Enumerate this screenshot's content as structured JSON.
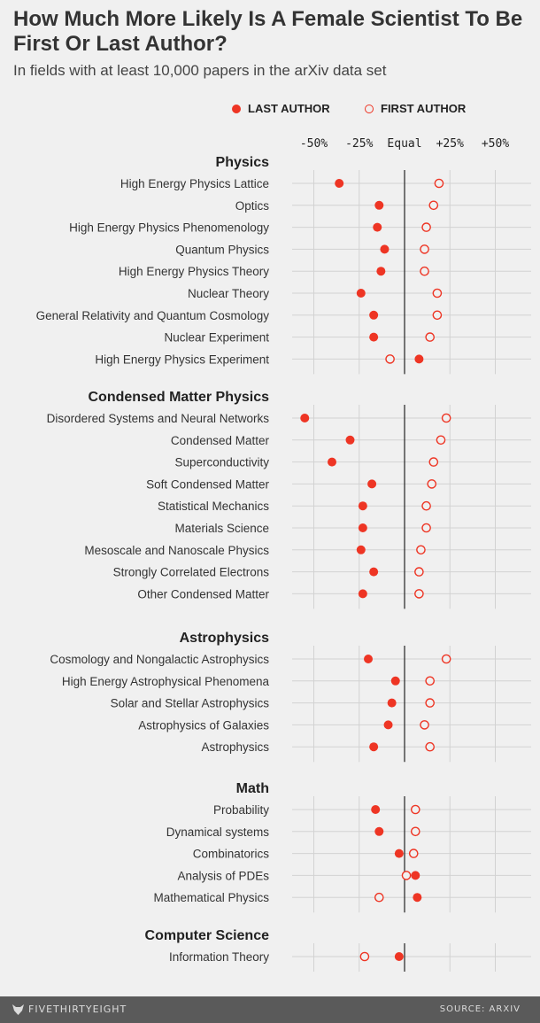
{
  "title": "How Much More Likely Is A Female Scientist To Be First Or Last Author?",
  "subtitle": "In fields with at least 10,000 papers in the arXiv data set",
  "legend": {
    "last_author": "LAST AUTHOR",
    "first_author": "FIRST AUTHOR"
  },
  "footer": {
    "brand": "FIVETHIRTYEIGHT",
    "source": "SOURCE: ARXIV"
  },
  "colors": {
    "accent": "#ee3524",
    "background": "#f0f0f0",
    "footer": "#5a5a5a"
  },
  "chart_data": {
    "type": "scatter",
    "xlim": [
      -60,
      60
    ],
    "x_ticks": [
      {
        "value": -50,
        "label": "-50%"
      },
      {
        "value": -25,
        "label": "-25%"
      },
      {
        "value": 0,
        "label": "Equal"
      },
      {
        "value": 25,
        "label": "+25%"
      },
      {
        "value": 50,
        "label": "+50%"
      }
    ],
    "grid": true,
    "series": [
      {
        "name": "LAST AUTHOR",
        "marker": "filled"
      },
      {
        "name": "FIRST AUTHOR",
        "marker": "hollow"
      }
    ],
    "groups": [
      {
        "name": "Physics",
        "fields": [
          {
            "label": "High Energy Physics Lattice",
            "last": -36,
            "first": 19
          },
          {
            "label": "Optics",
            "last": -14,
            "first": 16
          },
          {
            "label": "High Energy Physics Phenomenology",
            "last": -15,
            "first": 12
          },
          {
            "label": "Quantum Physics",
            "last": -11,
            "first": 11
          },
          {
            "label": "High Energy Physics Theory",
            "last": -13,
            "first": 11
          },
          {
            "label": "Nuclear Theory",
            "last": -24,
            "first": 18
          },
          {
            "label": "General Relativity and Quantum Cosmology",
            "last": -17,
            "first": 18
          },
          {
            "label": "Nuclear Experiment",
            "last": -17,
            "first": 14
          },
          {
            "label": "High Energy Physics Experiment",
            "last": 8,
            "first": -8
          }
        ]
      },
      {
        "name": "Condensed Matter Physics",
        "fields": [
          {
            "label": "Disordered Systems and Neural Networks",
            "last": -55,
            "first": 23
          },
          {
            "label": "Condensed Matter",
            "last": -30,
            "first": 20
          },
          {
            "label": "Superconductivity",
            "last": -40,
            "first": 16
          },
          {
            "label": "Soft Condensed Matter",
            "last": -18,
            "first": 15
          },
          {
            "label": "Statistical Mechanics",
            "last": -23,
            "first": 12
          },
          {
            "label": "Materials Science",
            "last": -23,
            "first": 12
          },
          {
            "label": "Mesoscale and Nanoscale Physics",
            "last": -24,
            "first": 9
          },
          {
            "label": "Strongly Correlated Electrons",
            "last": -17,
            "first": 8
          },
          {
            "label": "Other Condensed Matter",
            "last": -23,
            "first": 8
          }
        ]
      },
      {
        "name": "Astrophysics",
        "fields": [
          {
            "label": "Cosmology and Nongalactic Astrophysics",
            "last": -20,
            "first": 23
          },
          {
            "label": "High Energy Astrophysical Phenomena",
            "last": -5,
            "first": 14
          },
          {
            "label": "Solar and Stellar Astrophysics",
            "last": -7,
            "first": 14
          },
          {
            "label": "Astrophysics of Galaxies",
            "last": -9,
            "first": 11
          },
          {
            "label": "Astrophysics",
            "last": -17,
            "first": 14
          }
        ]
      },
      {
        "name": "Math",
        "fields": [
          {
            "label": "Probability",
            "last": -16,
            "first": 6
          },
          {
            "label": "Dynamical systems",
            "last": -14,
            "first": 6
          },
          {
            "label": "Combinatorics",
            "last": -3,
            "first": 5
          },
          {
            "label": "Analysis of PDEs",
            "last": 6,
            "first": 1
          },
          {
            "label": "Mathematical Physics",
            "last": 7,
            "first": -14
          }
        ]
      },
      {
        "name": "Computer Science",
        "fields": [
          {
            "label": "Information Theory",
            "last": -3,
            "first": -22
          }
        ]
      }
    ]
  }
}
